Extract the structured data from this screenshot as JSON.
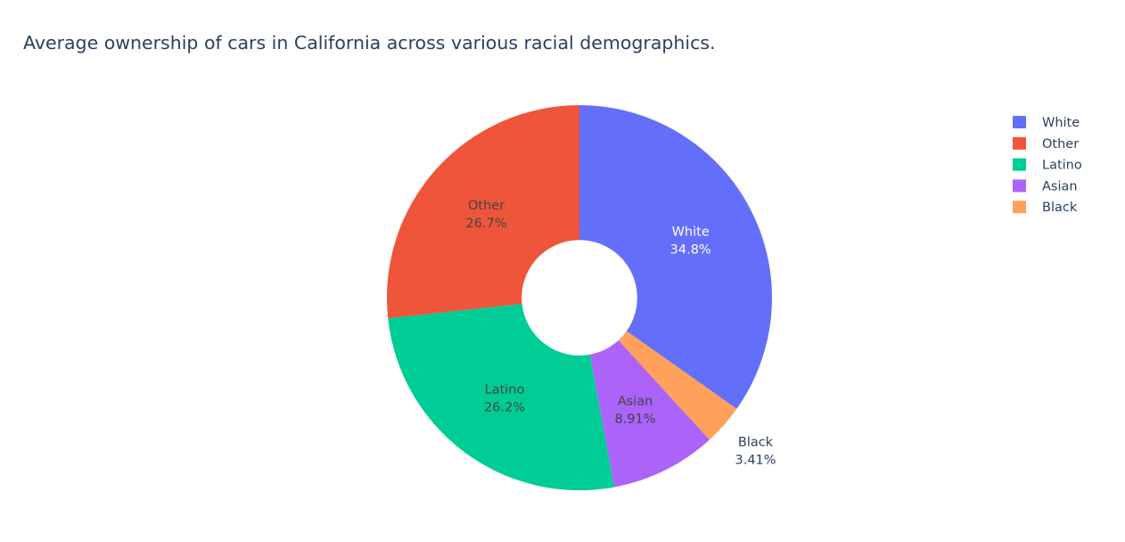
{
  "chart_data": {
    "type": "pie",
    "title": "Average ownership of cars in California across various racial demographics.",
    "hole": 0.3,
    "legend_position": "top-right",
    "slices": [
      {
        "label": "White",
        "percent_label": "34.8%",
        "value": 34.8,
        "color": "#636efa",
        "text_color": "#ffffff"
      },
      {
        "label": "Other",
        "percent_label": "26.7%",
        "value": 26.7,
        "color": "#ef553b",
        "text_color": "#444444"
      },
      {
        "label": "Latino",
        "percent_label": "26.2%",
        "value": 26.2,
        "color": "#00cc96",
        "text_color": "#444444"
      },
      {
        "label": "Asian",
        "percent_label": "8.91%",
        "value": 8.91,
        "color": "#ab63fa",
        "text_color": "#444444"
      },
      {
        "label": "Black",
        "percent_label": "3.41%",
        "value": 3.41,
        "color": "#ffa15a",
        "text_color": "#2a3f5f"
      }
    ],
    "slice_order": [
      "White",
      "Black",
      "Asian",
      "Latino",
      "Other"
    ]
  }
}
